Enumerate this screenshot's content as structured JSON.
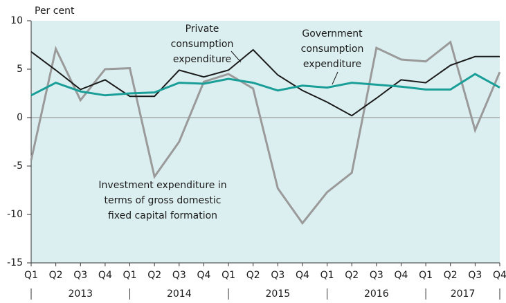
{
  "chart_data": {
    "type": "line",
    "y_label": "Per cent",
    "categories": [
      "Q1",
      "Q2",
      "Q3",
      "Q4",
      "Q1",
      "Q2",
      "Q3",
      "Q4",
      "Q1",
      "Q2",
      "Q3",
      "Q4",
      "Q1",
      "Q2",
      "Q3",
      "Q4",
      "Q1",
      "Q2",
      "Q3",
      "Q4"
    ],
    "years": [
      "2013",
      "2014",
      "2015",
      "2016",
      "2017"
    ],
    "series": [
      {
        "name": "Investment expenditure in terms of gross domestic fixed capital formation",
        "color": "#9a9a9a",
        "values": [
          -4.4,
          7.1,
          1.8,
          5.0,
          5.1,
          -6.1,
          -2.5,
          3.7,
          4.5,
          3.0,
          -7.3,
          -10.9,
          -7.7,
          -5.7,
          7.2,
          6.0,
          5.8,
          7.8,
          -1.3,
          4.7
        ]
      },
      {
        "name": "Private consumption expenditure",
        "color": "#1a1a1a",
        "values": [
          6.8,
          4.9,
          2.9,
          3.9,
          2.2,
          2.2,
          4.9,
          4.2,
          4.9,
          7.0,
          4.4,
          2.8,
          1.6,
          0.2,
          2.0,
          3.9,
          3.6,
          5.4,
          6.3,
          6.3
        ]
      },
      {
        "name": "Government consumption expenditure",
        "color": "#1a9e98",
        "values": [
          2.3,
          3.6,
          2.7,
          2.3,
          2.5,
          2.6,
          3.6,
          3.5,
          4.0,
          3.6,
          2.8,
          3.3,
          3.1,
          3.6,
          3.4,
          3.2,
          2.9,
          2.9,
          4.5,
          3.1
        ]
      }
    ],
    "annotations": [
      {
        "lines": [
          "Investment expenditure in",
          "terms of gross domestic",
          "fixed capital formation"
        ]
      },
      {
        "lines": [
          "Private",
          "consumption",
          "expenditure"
        ]
      },
      {
        "lines": [
          "Government",
          "consumption",
          "expenditure"
        ]
      }
    ],
    "ylim": [
      -15,
      10
    ],
    "yticks": [
      -15,
      -10,
      -5,
      0,
      5,
      10
    ],
    "grid": false
  }
}
